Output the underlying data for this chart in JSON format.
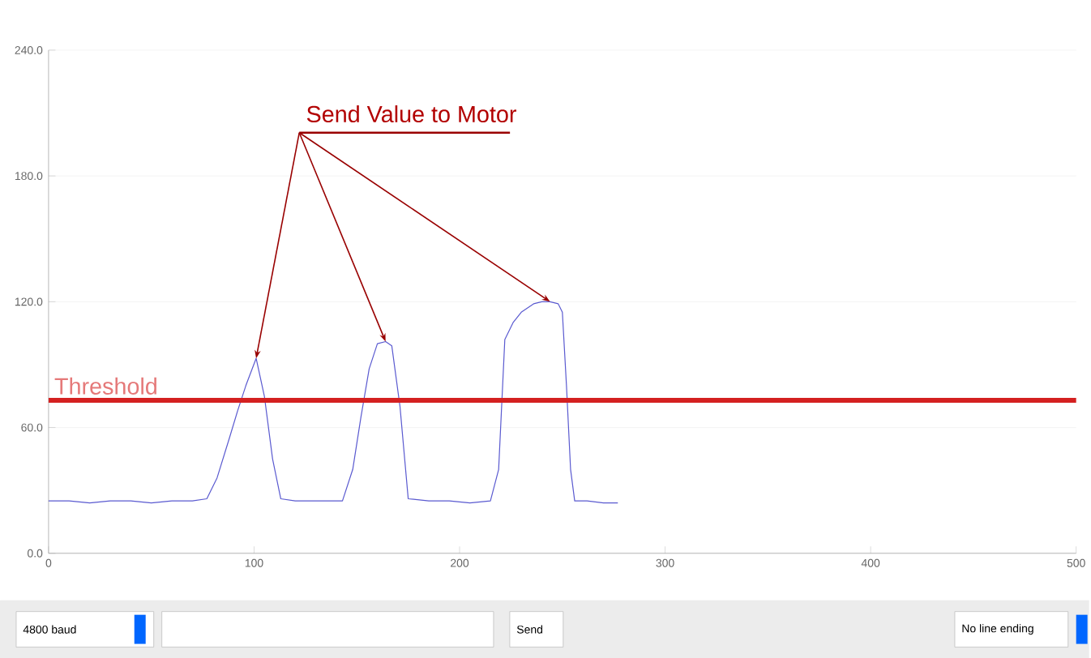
{
  "chart_data": {
    "type": "line",
    "x": [
      0,
      10,
      20,
      30,
      40,
      50,
      60,
      70,
      77,
      82,
      88,
      92,
      96,
      101,
      105,
      109,
      113,
      120,
      130,
      143,
      148,
      152,
      156,
      160,
      164,
      167,
      171,
      175,
      185,
      195,
      205,
      215,
      219,
      222,
      226,
      230,
      236,
      240,
      244,
      248,
      250,
      252,
      254,
      256,
      262,
      270,
      277
    ],
    "series": [
      {
        "color": "#5a5ad0",
        "values": [
          25,
          25,
          24,
          25,
          25,
          24,
          25,
          25,
          26,
          36,
          55,
          68,
          80,
          93,
          75,
          45,
          26,
          25,
          25,
          25,
          40,
          65,
          88,
          100,
          101,
          99,
          70,
          26,
          25,
          25,
          24,
          25,
          40,
          102,
          110,
          115,
          119,
          120,
          120,
          119,
          115,
          80,
          40,
          25,
          25,
          24,
          24
        ]
      }
    ],
    "xlim": [
      0,
      500
    ],
    "ylim": [
      0,
      240
    ],
    "xticks": [
      0,
      100,
      200,
      300,
      400,
      500
    ],
    "yticks": [
      {
        "value": 0,
        "label": "0.0"
      },
      {
        "value": 60,
        "label": "60.0"
      },
      {
        "value": 120,
        "label": "120.0"
      },
      {
        "value": 180,
        "label": "180.0"
      },
      {
        "value": 240,
        "label": "240.0"
      }
    ],
    "grid": "y",
    "ref_lines": [
      {
        "axis": "y",
        "value": 73,
        "label": "Threshold",
        "color": "#d42020"
      }
    ],
    "annotations": [
      {
        "text": "Send Value to Motor",
        "x": 244,
        "y": 120
      },
      "4800 baud",
      "Send",
      "No line ending"
    ]
  }
}
